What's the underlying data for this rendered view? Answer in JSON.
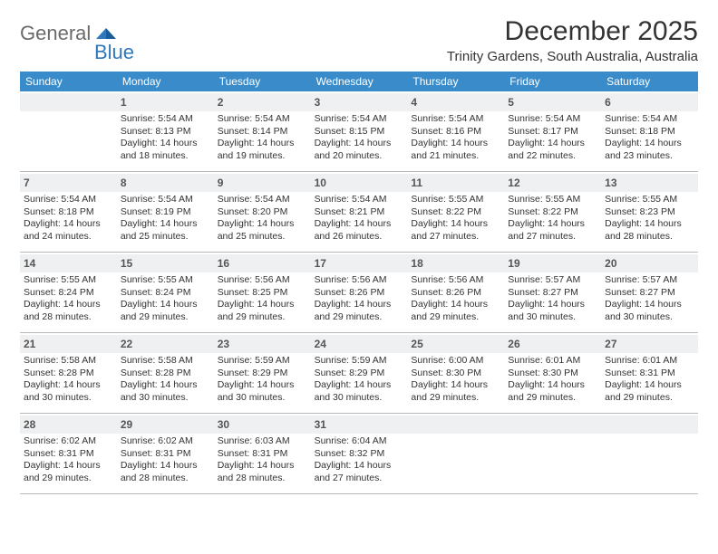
{
  "logo": {
    "word1": "General",
    "word2": "Blue"
  },
  "title": "December 2025",
  "subtitle": "Trinity Gardens, South Australia, Australia",
  "colors": {
    "header_bg": "#3a8bc9",
    "header_text": "#ffffff",
    "daynum_bg": "#eef0f1",
    "border": "#b8b8b8",
    "body_text": "#333333",
    "logo_gray": "#6a6a6a",
    "logo_blue": "#2f78bd"
  },
  "day_names": [
    "Sunday",
    "Monday",
    "Tuesday",
    "Wednesday",
    "Thursday",
    "Friday",
    "Saturday"
  ],
  "weeks": [
    [
      {
        "day": "",
        "lines": []
      },
      {
        "day": "1",
        "lines": [
          "Sunrise: 5:54 AM",
          "Sunset: 8:13 PM",
          "Daylight: 14 hours",
          "and 18 minutes."
        ]
      },
      {
        "day": "2",
        "lines": [
          "Sunrise: 5:54 AM",
          "Sunset: 8:14 PM",
          "Daylight: 14 hours",
          "and 19 minutes."
        ]
      },
      {
        "day": "3",
        "lines": [
          "Sunrise: 5:54 AM",
          "Sunset: 8:15 PM",
          "Daylight: 14 hours",
          "and 20 minutes."
        ]
      },
      {
        "day": "4",
        "lines": [
          "Sunrise: 5:54 AM",
          "Sunset: 8:16 PM",
          "Daylight: 14 hours",
          "and 21 minutes."
        ]
      },
      {
        "day": "5",
        "lines": [
          "Sunrise: 5:54 AM",
          "Sunset: 8:17 PM",
          "Daylight: 14 hours",
          "and 22 minutes."
        ]
      },
      {
        "day": "6",
        "lines": [
          "Sunrise: 5:54 AM",
          "Sunset: 8:18 PM",
          "Daylight: 14 hours",
          "and 23 minutes."
        ]
      }
    ],
    [
      {
        "day": "7",
        "lines": [
          "Sunrise: 5:54 AM",
          "Sunset: 8:18 PM",
          "Daylight: 14 hours",
          "and 24 minutes."
        ]
      },
      {
        "day": "8",
        "lines": [
          "Sunrise: 5:54 AM",
          "Sunset: 8:19 PM",
          "Daylight: 14 hours",
          "and 25 minutes."
        ]
      },
      {
        "day": "9",
        "lines": [
          "Sunrise: 5:54 AM",
          "Sunset: 8:20 PM",
          "Daylight: 14 hours",
          "and 25 minutes."
        ]
      },
      {
        "day": "10",
        "lines": [
          "Sunrise: 5:54 AM",
          "Sunset: 8:21 PM",
          "Daylight: 14 hours",
          "and 26 minutes."
        ]
      },
      {
        "day": "11",
        "lines": [
          "Sunrise: 5:55 AM",
          "Sunset: 8:22 PM",
          "Daylight: 14 hours",
          "and 27 minutes."
        ]
      },
      {
        "day": "12",
        "lines": [
          "Sunrise: 5:55 AM",
          "Sunset: 8:22 PM",
          "Daylight: 14 hours",
          "and 27 minutes."
        ]
      },
      {
        "day": "13",
        "lines": [
          "Sunrise: 5:55 AM",
          "Sunset: 8:23 PM",
          "Daylight: 14 hours",
          "and 28 minutes."
        ]
      }
    ],
    [
      {
        "day": "14",
        "lines": [
          "Sunrise: 5:55 AM",
          "Sunset: 8:24 PM",
          "Daylight: 14 hours",
          "and 28 minutes."
        ]
      },
      {
        "day": "15",
        "lines": [
          "Sunrise: 5:55 AM",
          "Sunset: 8:24 PM",
          "Daylight: 14 hours",
          "and 29 minutes."
        ]
      },
      {
        "day": "16",
        "lines": [
          "Sunrise: 5:56 AM",
          "Sunset: 8:25 PM",
          "Daylight: 14 hours",
          "and 29 minutes."
        ]
      },
      {
        "day": "17",
        "lines": [
          "Sunrise: 5:56 AM",
          "Sunset: 8:26 PM",
          "Daylight: 14 hours",
          "and 29 minutes."
        ]
      },
      {
        "day": "18",
        "lines": [
          "Sunrise: 5:56 AM",
          "Sunset: 8:26 PM",
          "Daylight: 14 hours",
          "and 29 minutes."
        ]
      },
      {
        "day": "19",
        "lines": [
          "Sunrise: 5:57 AM",
          "Sunset: 8:27 PM",
          "Daylight: 14 hours",
          "and 30 minutes."
        ]
      },
      {
        "day": "20",
        "lines": [
          "Sunrise: 5:57 AM",
          "Sunset: 8:27 PM",
          "Daylight: 14 hours",
          "and 30 minutes."
        ]
      }
    ],
    [
      {
        "day": "21",
        "lines": [
          "Sunrise: 5:58 AM",
          "Sunset: 8:28 PM",
          "Daylight: 14 hours",
          "and 30 minutes."
        ]
      },
      {
        "day": "22",
        "lines": [
          "Sunrise: 5:58 AM",
          "Sunset: 8:28 PM",
          "Daylight: 14 hours",
          "and 30 minutes."
        ]
      },
      {
        "day": "23",
        "lines": [
          "Sunrise: 5:59 AM",
          "Sunset: 8:29 PM",
          "Daylight: 14 hours",
          "and 30 minutes."
        ]
      },
      {
        "day": "24",
        "lines": [
          "Sunrise: 5:59 AM",
          "Sunset: 8:29 PM",
          "Daylight: 14 hours",
          "and 30 minutes."
        ]
      },
      {
        "day": "25",
        "lines": [
          "Sunrise: 6:00 AM",
          "Sunset: 8:30 PM",
          "Daylight: 14 hours",
          "and 29 minutes."
        ]
      },
      {
        "day": "26",
        "lines": [
          "Sunrise: 6:01 AM",
          "Sunset: 8:30 PM",
          "Daylight: 14 hours",
          "and 29 minutes."
        ]
      },
      {
        "day": "27",
        "lines": [
          "Sunrise: 6:01 AM",
          "Sunset: 8:31 PM",
          "Daylight: 14 hours",
          "and 29 minutes."
        ]
      }
    ],
    [
      {
        "day": "28",
        "lines": [
          "Sunrise: 6:02 AM",
          "Sunset: 8:31 PM",
          "Daylight: 14 hours",
          "and 29 minutes."
        ]
      },
      {
        "day": "29",
        "lines": [
          "Sunrise: 6:02 AM",
          "Sunset: 8:31 PM",
          "Daylight: 14 hours",
          "and 28 minutes."
        ]
      },
      {
        "day": "30",
        "lines": [
          "Sunrise: 6:03 AM",
          "Sunset: 8:31 PM",
          "Daylight: 14 hours",
          "and 28 minutes."
        ]
      },
      {
        "day": "31",
        "lines": [
          "Sunrise: 6:04 AM",
          "Sunset: 8:32 PM",
          "Daylight: 14 hours",
          "and 27 minutes."
        ]
      },
      {
        "day": "",
        "lines": []
      },
      {
        "day": "",
        "lines": []
      },
      {
        "day": "",
        "lines": []
      }
    ]
  ]
}
